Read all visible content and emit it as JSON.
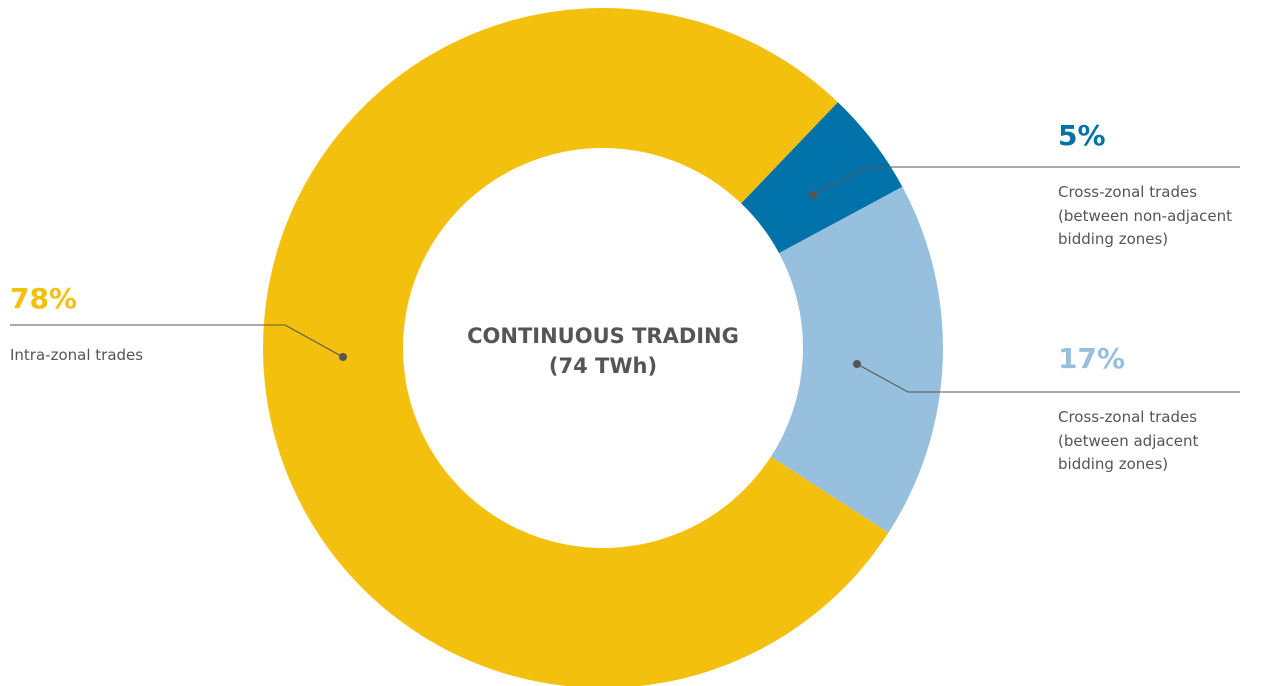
{
  "chart_data": {
    "type": "pie",
    "donut": true,
    "title": "CONTINUOUS TRADING",
    "subtitle": "(74 TWh)",
    "categories": [
      "Intra-zonal trades",
      "Cross-zonal trades (between non-adjacent bidding zones)",
      "Cross-zonal trades (between adjacent bidding zones)"
    ],
    "values": [
      78,
      5,
      17
    ],
    "value_labels": [
      "78%",
      "5%",
      "17%"
    ],
    "colors": [
      "#f3c00e",
      "#0072aa",
      "#96c0de"
    ]
  }
}
